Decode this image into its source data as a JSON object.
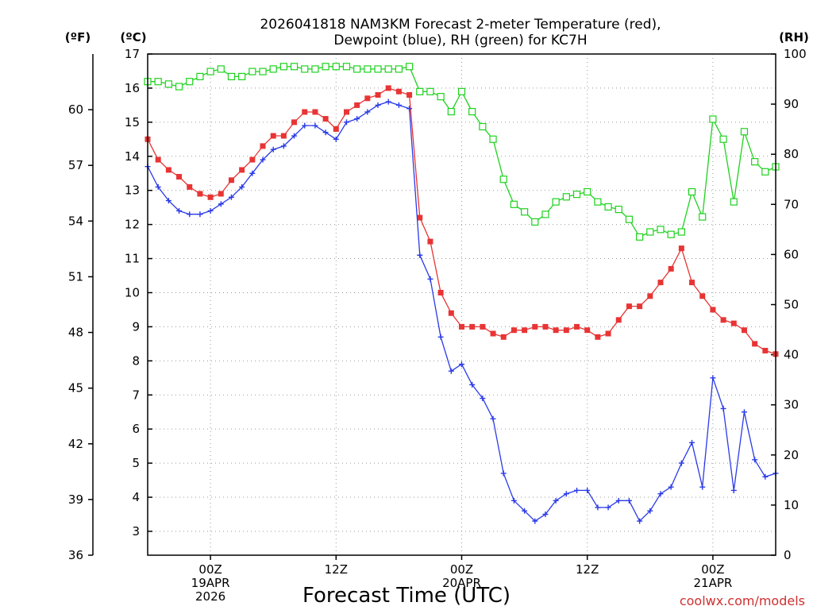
{
  "title": {
    "line1": "2026041818 NAM3KM Forecast 2-meter Temperature (red),",
    "line2": "Dewpoint (blue), RH (green) for KC7H"
  },
  "axes": {
    "left_f_unit": "(ºF)",
    "left_c_unit": "(ºC)",
    "right_unit": "(RH)",
    "xlabel": "Forecast Time (UTC)"
  },
  "credit": "coolwx.com/models",
  "colors": {
    "temperature": "#e83434",
    "dewpoint": "#2a3ae8",
    "rh": "#1ed21e"
  },
  "chart_data": {
    "type": "line",
    "title": "2026041818 NAM3KM Forecast 2-meter Temperature (red), Dewpoint (blue), RH (green) for KC7H",
    "xlabel": "Forecast Time (UTC)",
    "x_unit": "forecast hour from 2026041818 (hourly, 0-60)",
    "x_tick_hours": [
      6,
      18,
      30,
      42,
      54
    ],
    "x_tick_labels": [
      [
        "00Z",
        "19APR",
        "2026"
      ],
      [
        "12Z"
      ],
      [
        "00Z",
        "20APR"
      ],
      [
        "12Z"
      ],
      [
        "00Z",
        "21APR"
      ]
    ],
    "x_range": [
      0,
      60
    ],
    "celsius_axis": {
      "label": "(ºC)",
      "range": [
        2.3,
        17
      ],
      "ticks": [
        3,
        4,
        5,
        6,
        7,
        8,
        9,
        10,
        11,
        12,
        13,
        14,
        15,
        16,
        17
      ]
    },
    "fahrenheit_axis": {
      "label": "(ºF)",
      "range": [
        36,
        63
      ],
      "ticks": [
        36,
        39,
        42,
        45,
        48,
        51,
        54,
        57,
        60
      ]
    },
    "rh_axis": {
      "label": "(RH)",
      "range": [
        0,
        100
      ],
      "ticks": [
        0,
        10,
        20,
        30,
        40,
        50,
        60,
        70,
        80,
        90,
        100
      ]
    },
    "grid": true,
    "series": [
      {
        "name": "Temperature (red)",
        "axis": "celsius",
        "marker": "filled-square",
        "values": [
          14.5,
          13.9,
          13.6,
          13.4,
          13.1,
          12.9,
          12.8,
          12.9,
          13.3,
          13.6,
          13.9,
          14.3,
          14.6,
          14.6,
          15.0,
          15.3,
          15.3,
          15.1,
          14.8,
          15.3,
          15.5,
          15.7,
          15.8,
          16.0,
          15.9,
          15.8,
          12.2,
          11.5,
          10.0,
          9.4,
          9.0,
          9.0,
          9.0,
          8.8,
          8.7,
          8.9,
          8.9,
          9.0,
          9.0,
          8.9,
          8.9,
          9.0,
          8.9,
          8.7,
          8.8,
          9.2,
          9.6,
          9.6,
          9.9,
          10.3,
          10.7,
          11.3,
          10.3,
          9.9,
          9.5,
          9.2,
          9.1,
          8.9,
          8.5,
          8.3,
          8.2
        ]
      },
      {
        "name": "Dewpoint (blue)",
        "axis": "celsius",
        "marker": "plus",
        "values": [
          13.7,
          13.1,
          12.7,
          12.4,
          12.3,
          12.3,
          12.4,
          12.6,
          12.8,
          13.1,
          13.5,
          13.9,
          14.2,
          14.3,
          14.6,
          14.9,
          14.9,
          14.7,
          14.5,
          15.0,
          15.1,
          15.3,
          15.5,
          15.6,
          15.5,
          15.4,
          11.1,
          10.4,
          8.7,
          7.7,
          7.9,
          7.3,
          6.9,
          6.3,
          4.7,
          3.9,
          3.6,
          3.3,
          3.5,
          3.9,
          4.1,
          4.2,
          4.2,
          3.7,
          3.7,
          3.9,
          3.9,
          3.3,
          3.6,
          4.1,
          4.3,
          5.0,
          5.6,
          4.3,
          7.5,
          6.6,
          4.2,
          6.5,
          5.1,
          4.6,
          4.7
        ]
      },
      {
        "name": "RH (green)",
        "axis": "rh",
        "marker": "open-square",
        "values": [
          94.5,
          94.5,
          94,
          93.5,
          94.5,
          95.5,
          96.5,
          97,
          95.5,
          95.5,
          96.5,
          96.5,
          97,
          97.5,
          97.5,
          97,
          97,
          97.5,
          97.5,
          97.5,
          97,
          97,
          97,
          97,
          97,
          97.5,
          92.5,
          92.5,
          91.5,
          88.5,
          92.5,
          88.5,
          85.5,
          83,
          75,
          70,
          68.5,
          66.5,
          68,
          70.5,
          71.5,
          72,
          72.5,
          70.5,
          69.5,
          69,
          67,
          63.5,
          64.5,
          65,
          64,
          64.5,
          72.5,
          67.5,
          87,
          83,
          70.5,
          84.5,
          78.5,
          76.5,
          77.5
        ]
      }
    ]
  }
}
